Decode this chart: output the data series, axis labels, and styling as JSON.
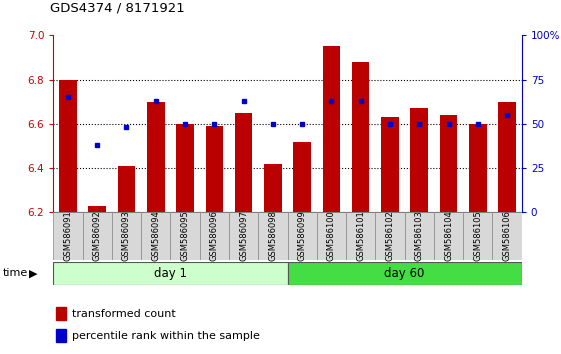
{
  "title": "GDS4374 / 8171921",
  "categories": [
    "GSM586091",
    "GSM586092",
    "GSM586093",
    "GSM586094",
    "GSM586095",
    "GSM586096",
    "GSM586097",
    "GSM586098",
    "GSM586099",
    "GSM586100",
    "GSM586101",
    "GSM586102",
    "GSM586103",
    "GSM586104",
    "GSM586105",
    "GSM586106"
  ],
  "red_values": [
    6.8,
    6.23,
    6.41,
    6.7,
    6.6,
    6.59,
    6.65,
    6.42,
    6.52,
    6.95,
    6.88,
    6.63,
    6.67,
    6.64,
    6.6,
    6.7
  ],
  "blue_values": [
    65,
    38,
    48,
    63,
    50,
    50,
    63,
    50,
    50,
    63,
    63,
    50,
    50,
    50,
    50,
    55
  ],
  "ylim_left": [
    6.2,
    7.0
  ],
  "ylim_right": [
    0,
    100
  ],
  "yticks_left": [
    6.2,
    6.4,
    6.6,
    6.8,
    7.0
  ],
  "yticks_right": [
    0,
    25,
    50,
    75,
    100
  ],
  "ytick_labels_right": [
    "0",
    "25",
    "50",
    "75",
    "100%"
  ],
  "day1_count": 8,
  "day60_count": 8,
  "day1_label": "day 1",
  "day60_label": "day 60",
  "bar_color": "#bb0000",
  "dot_color": "#0000cc",
  "day1_bg": "#ccffcc",
  "day60_bg": "#44dd44",
  "tick_color_left": "#cc0000",
  "tick_color_right": "#0000cc",
  "baseline": 6.2,
  "legend_red": "transformed count",
  "legend_blue": "percentile rank within the sample",
  "grid_dotted_vals": [
    6.4,
    6.6,
    6.8
  ]
}
